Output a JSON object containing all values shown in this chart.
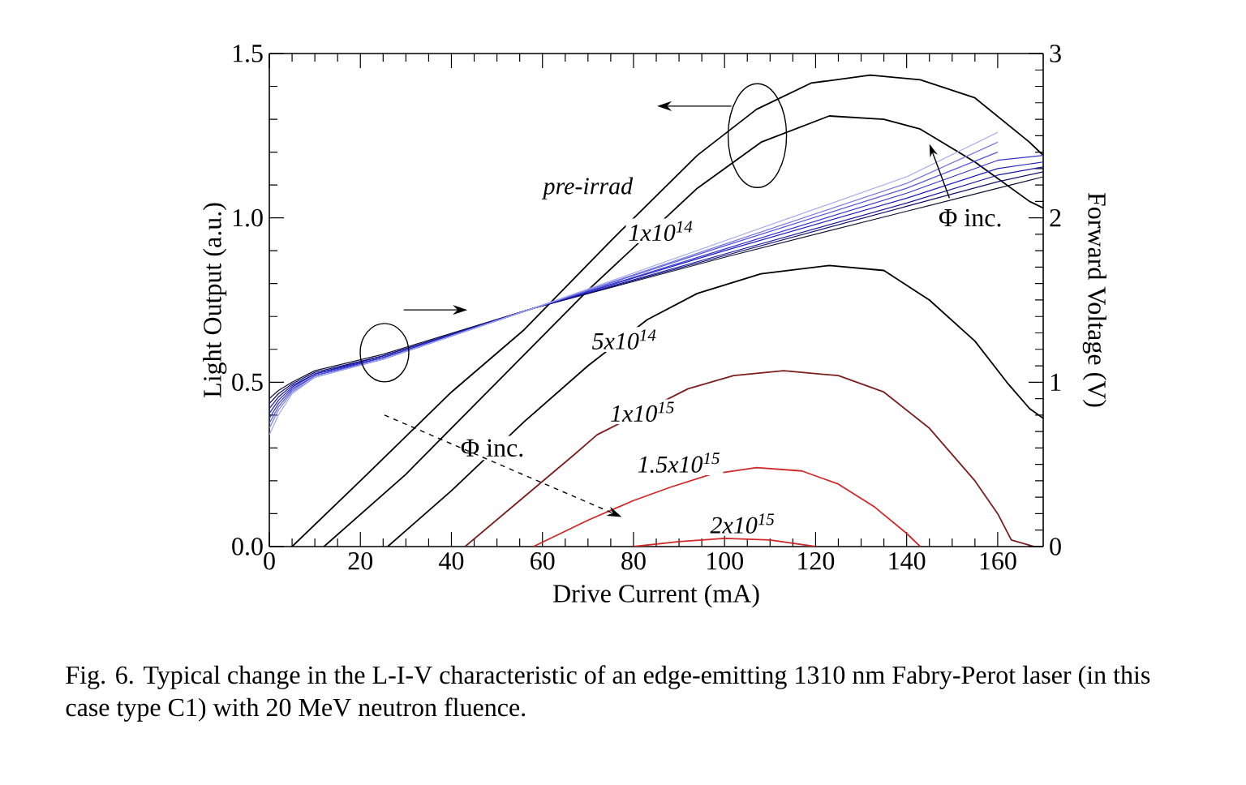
{
  "chart_data": {
    "type": "line",
    "xlabel": "Drive Current (mA)",
    "ylabel": "Light Output (a.u.)",
    "y2label": "Forward Voltage (V)",
    "xlim": [
      0,
      170
    ],
    "xticks": [
      0,
      20,
      40,
      60,
      80,
      100,
      120,
      140,
      160
    ],
    "ylim": [
      0,
      1.5
    ],
    "yticks": [
      {
        "value": 0,
        "label": "0.0"
      },
      {
        "value": 0.5,
        "label": "0.5"
      },
      {
        "value": 1.0,
        "label": "1.0"
      },
      {
        "value": 1.5,
        "label": "1.5"
      }
    ],
    "y2lim": [
      0,
      3
    ],
    "y2ticks": [
      0,
      1,
      2,
      3
    ],
    "series": [
      {
        "name": "pre-irrad",
        "color": "#000000",
        "x": [
          5,
          20,
          40,
          56,
          75,
          94,
          107,
          119,
          132,
          143,
          155,
          167,
          170
        ],
        "values": [
          0,
          0.2,
          0.47,
          0.66,
          0.93,
          1.19,
          1.33,
          1.41,
          1.434,
          1.42,
          1.365,
          1.23,
          1.19
        ]
      },
      {
        "name": "1x10$^{14}$",
        "color": "#000000",
        "x": [
          12,
          30,
          50,
          70,
          94,
          108,
          123,
          135,
          143,
          155,
          167,
          170
        ],
        "values": [
          0,
          0.22,
          0.5,
          0.78,
          1.09,
          1.23,
          1.31,
          1.3,
          1.27,
          1.17,
          1.05,
          1.03
        ]
      },
      {
        "name": "5x10$^{14}$",
        "color": "#000000",
        "x": [
          26,
          40,
          56,
          70,
          83,
          94,
          108,
          123,
          135,
          145,
          155,
          162,
          167,
          170
        ],
        "values": [
          0,
          0.17,
          0.38,
          0.55,
          0.69,
          0.77,
          0.83,
          0.855,
          0.84,
          0.75,
          0.625,
          0.5,
          0.42,
          0.39
        ]
      },
      {
        "name": "1x10$^{15}$",
        "color": "#7a1e1e",
        "x": [
          43,
          55,
          67,
          72,
          92,
          102,
          113,
          125,
          135,
          145,
          155,
          160,
          163,
          168
        ],
        "values": [
          0,
          0.14,
          0.28,
          0.34,
          0.48,
          0.52,
          0.535,
          0.52,
          0.47,
          0.36,
          0.2,
          0.1,
          0.02,
          0.0
        ]
      },
      {
        "name": "1.5x10$^{15}$",
        "color": "#d02828",
        "x": [
          58,
          70,
          80,
          88,
          97,
          107,
          117,
          125,
          133,
          140,
          143
        ],
        "values": [
          0,
          0.08,
          0.14,
          0.18,
          0.22,
          0.24,
          0.23,
          0.19,
          0.12,
          0.04,
          0
        ]
      },
      {
        "name": "2x10$^{15}$",
        "color": "#d02828",
        "x": [
          80,
          90,
          100,
          110,
          120
        ],
        "values": [
          0,
          0.015,
          0.025,
          0.02,
          0
        ]
      },
      {
        "axis": "y2",
        "color": "#101030",
        "x": [
          0,
          2,
          5,
          10,
          25,
          58,
          100,
          140,
          160,
          170
        ],
        "values": [
          0.9,
          0.95,
          1.0,
          1.07,
          1.17,
          1.45,
          1.76,
          2.04,
          2.18,
          2.25
        ]
      },
      {
        "axis": "y2",
        "color": "#10106a",
        "x": [
          0,
          2,
          5,
          10,
          25,
          58,
          100,
          140,
          160,
          170
        ],
        "values": [
          0.87,
          0.93,
          0.99,
          1.06,
          1.16,
          1.45,
          1.77,
          2.07,
          2.22,
          2.28
        ]
      },
      {
        "axis": "y2",
        "color": "#1515a0",
        "x": [
          0,
          2,
          5,
          10,
          25,
          58,
          100,
          140,
          160,
          170
        ],
        "values": [
          0.84,
          0.91,
          0.98,
          1.05,
          1.16,
          1.45,
          1.78,
          2.09,
          2.26,
          2.31
        ]
      },
      {
        "axis": "y2",
        "color": "#2020c0",
        "x": [
          0,
          2,
          5,
          10,
          25,
          58,
          100,
          140,
          160,
          170
        ],
        "values": [
          0.81,
          0.89,
          0.97,
          1.05,
          1.15,
          1.45,
          1.8,
          2.12,
          2.3,
          2.34
        ]
      },
      {
        "axis": "y2",
        "color": "#3535d0",
        "x": [
          0,
          2,
          5,
          10,
          25,
          58,
          100,
          140,
          160,
          170
        ],
        "values": [
          0.78,
          0.87,
          0.96,
          1.04,
          1.15,
          1.45,
          1.81,
          2.15,
          2.35,
          2.38
        ]
      },
      {
        "axis": "y2",
        "color": "#5555d8",
        "x": [
          0,
          2,
          5,
          10,
          25,
          58,
          100,
          140,
          160
        ],
        "values": [
          0.75,
          0.85,
          0.95,
          1.04,
          1.14,
          1.45,
          1.83,
          2.18,
          2.4
        ]
      },
      {
        "axis": "y2",
        "color": "#7a7ae0",
        "x": [
          0,
          2,
          5,
          10,
          25,
          58,
          100,
          140,
          160
        ],
        "values": [
          0.72,
          0.83,
          0.94,
          1.03,
          1.14,
          1.45,
          1.84,
          2.21,
          2.46
        ]
      },
      {
        "axis": "y2",
        "color": "#a0a8ec",
        "x": [
          0,
          2,
          5,
          10,
          25,
          58,
          100,
          140,
          160
        ],
        "values": [
          0.68,
          0.8,
          0.93,
          1.03,
          1.14,
          1.45,
          1.86,
          2.25,
          2.52
        ]
      }
    ],
    "annotations": [
      "Φ inc.",
      "Φ inc.",
      "Fig. 6.   Typical change in the L-I-V characteristic of an edge-emitting 1310 nm Fabry-Perot laser (in this case type C1) with 20 MeV neutron fluence."
    ]
  }
}
